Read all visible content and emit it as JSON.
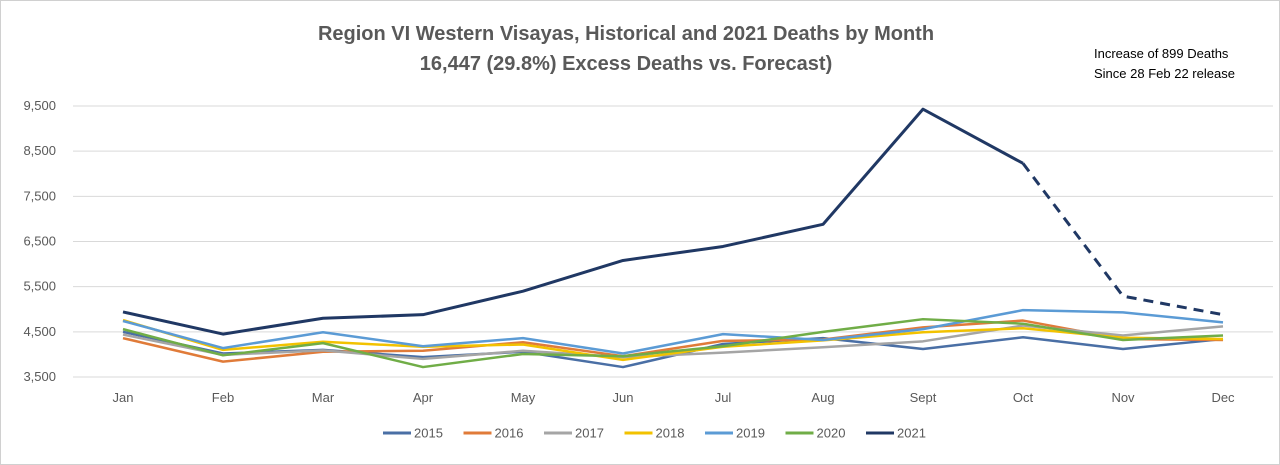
{
  "chart_data": {
    "type": "line",
    "title": "Region VI Western Visayas, Historical and 2021 Deaths by Month",
    "subtitle": "16,447 (29.8%) Excess Deaths vs. Forecast)",
    "annotation": [
      "Increase of 899 Deaths",
      "Since 28 Feb 22 release"
    ],
    "categories": [
      "Jan",
      "Feb",
      "Mar",
      "Apr",
      "May",
      "Jun",
      "Jul",
      "Aug",
      "Sept",
      "Oct",
      "Nov",
      "Dec"
    ],
    "y_ticks": [
      "3,500",
      "4,500",
      "5,500",
      "6,500",
      "7,500",
      "8,500",
      "9,500"
    ],
    "ylim": [
      3500,
      9800
    ],
    "grid": true,
    "legend_position": "bottom",
    "series": [
      {
        "name": "2015",
        "color": "#4a6fa5",
        "values": [
          4500,
          4020,
          4100,
          3940,
          4060,
          3720,
          4230,
          4360,
          4120,
          4380,
          4120,
          4340
        ]
      },
      {
        "name": "2016",
        "color": "#e07b39",
        "values": [
          4360,
          3840,
          4060,
          4080,
          4270,
          3960,
          4300,
          4330,
          4600,
          4750,
          4340,
          4320
        ]
      },
      {
        "name": "2017",
        "color": "#a5a5a5",
        "values": [
          4440,
          3990,
          4090,
          3900,
          4080,
          3940,
          4040,
          4160,
          4290,
          4640,
          4420,
          4620
        ]
      },
      {
        "name": "2018",
        "color": "#f2c200",
        "values": [
          4760,
          4100,
          4280,
          4170,
          4220,
          3880,
          4170,
          4310,
          4490,
          4580,
          4370,
          4340
        ]
      },
      {
        "name": "2019",
        "color": "#5b9bd5",
        "values": [
          4740,
          4140,
          4490,
          4180,
          4360,
          4020,
          4450,
          4320,
          4560,
          4980,
          4930,
          4710
        ]
      },
      {
        "name": "2020",
        "color": "#70ad47",
        "values": [
          4560,
          3980,
          4250,
          3720,
          4010,
          3960,
          4180,
          4500,
          4780,
          4680,
          4320,
          4420
        ]
      },
      {
        "name": "2021",
        "color": "#203864",
        "values": [
          4940,
          4450,
          4800,
          4880,
          5400,
          6080,
          6390,
          6880,
          9430,
          8230,
          5290,
          4880
        ],
        "dashed_from_index": 9
      }
    ]
  }
}
